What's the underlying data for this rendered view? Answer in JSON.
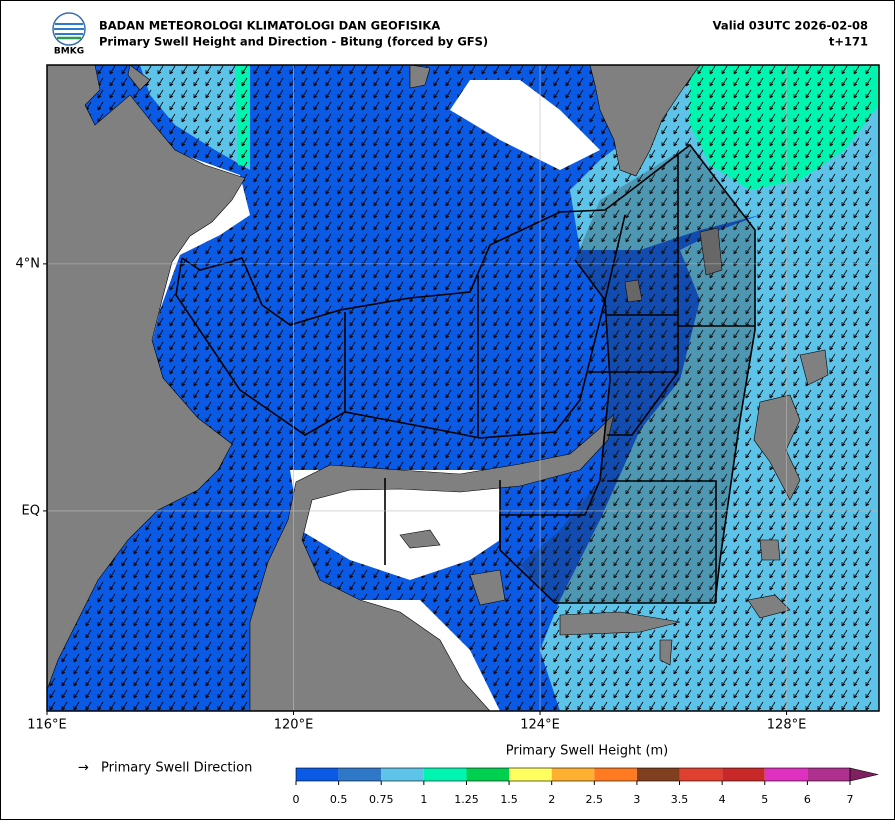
{
  "header": {
    "org": "BADAN METEOROLOGI KLIMATOLOGI DAN GEOFISIKA",
    "title": "Primary Swell Height and Direction - Bitung (forced by GFS)",
    "valid": "Valid 03UTC 2026-02-08",
    "lead": "t+171"
  },
  "logo": {
    "text": "BMKG"
  },
  "map": {
    "xlim": [
      116,
      129.5
    ],
    "ylim": [
      -3.24,
      7.22
    ],
    "xticks": [
      {
        "value": 116,
        "label": "116°E"
      },
      {
        "value": 120,
        "label": "120°E"
      },
      {
        "value": 124,
        "label": "124°E"
      },
      {
        "value": 128,
        "label": "128°E"
      }
    ],
    "yticks": [
      {
        "value": 4,
        "label": "4°N"
      },
      {
        "value": 0,
        "label": "EQ"
      }
    ],
    "grid": true
  },
  "legend": {
    "arrow": "→",
    "label": "Primary Swell Direction"
  },
  "colorbar": {
    "title": "Primary Swell Height (m)",
    "ticks": [
      0,
      0.5,
      0.75,
      1,
      1.25,
      1.5,
      2,
      2.5,
      3,
      3.5,
      4,
      5,
      6,
      7
    ],
    "colors": [
      "#0a5ae6",
      "#2f78c8",
      "#5ec3e8",
      "#00f5b0",
      "#00d050",
      "#ffff60",
      "#ffb030",
      "#ff7a20",
      "#804020",
      "#e04030",
      "#c82828",
      "#e030c0",
      "#b03090",
      "#802060"
    ]
  }
}
